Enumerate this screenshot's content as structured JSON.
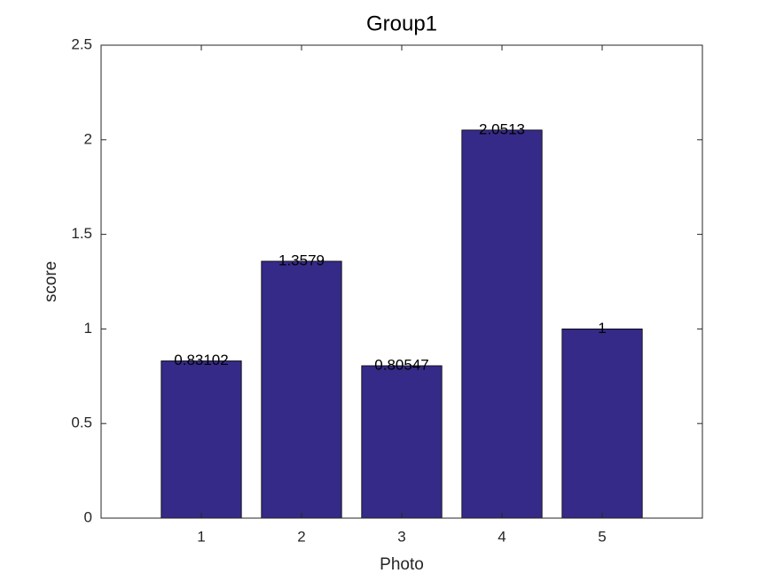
{
  "chart_data": {
    "type": "bar",
    "title": "Group1",
    "x_label": "Photo",
    "y_label": "score",
    "x": [
      1,
      2,
      3,
      4,
      5
    ],
    "values": [
      0.83102,
      1.3579,
      0.80547,
      2.0513,
      1
    ],
    "color": "#352a87",
    "xlim": [
      0,
      6
    ],
    "xticks": [
      1,
      2,
      3,
      4,
      5
    ],
    "ylim": [
      0,
      2.5
    ],
    "yticks": [
      0,
      0.5,
      1,
      1.5,
      2,
      2.5
    ],
    "grid": false,
    "bar_width": 0.8
  }
}
